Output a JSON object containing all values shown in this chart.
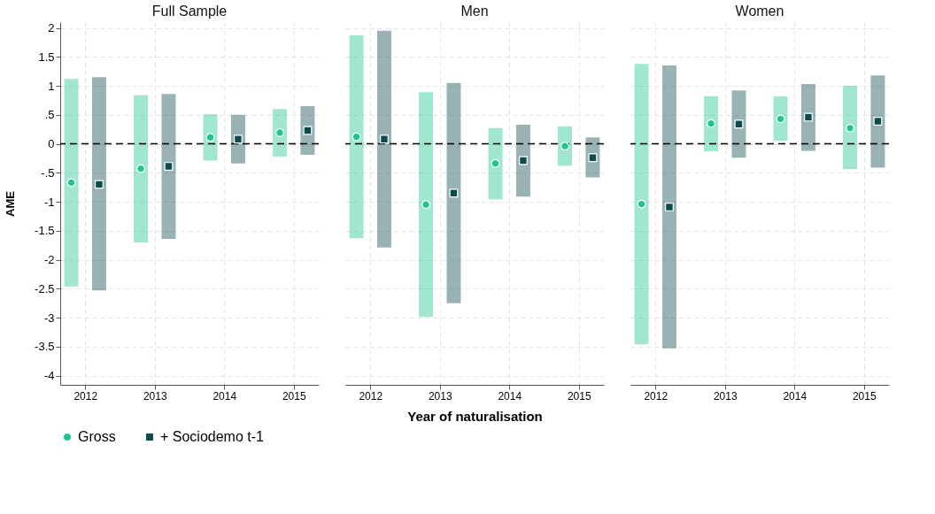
{
  "chart_data": [
    {
      "type": "scatter",
      "title": "Full Sample",
      "ylabel": "AME",
      "xlim": [
        2011.64,
        2015.36
      ],
      "ylim": [
        -4.16,
        2.1
      ],
      "xticks": [
        2012,
        2013,
        2014,
        2015
      ],
      "yticks": [
        {
          "value": -4,
          "label": "-4"
        },
        {
          "value": -3.5,
          "label": "-3.5"
        },
        {
          "value": -3,
          "label": "-3"
        },
        {
          "value": -2.5,
          "label": "-2.5"
        },
        {
          "value": -2,
          "label": "-2"
        },
        {
          "value": -1.5,
          "label": "-1.5"
        },
        {
          "value": -1,
          "label": "-1"
        },
        {
          "value": -0.5,
          "label": "-.5"
        },
        {
          "value": 0,
          "label": "0"
        },
        {
          "value": 0.5,
          "label": ".5"
        },
        {
          "value": 1,
          "label": "1"
        },
        {
          "value": 1.5,
          "label": "1.5"
        },
        {
          "value": 2,
          "label": "2"
        }
      ],
      "grid": true,
      "legend": "bottom",
      "ref_lines": [
        {
          "axis": "y",
          "value": 0,
          "color": "#000000",
          "line_style": "dashed"
        }
      ],
      "series": [
        {
          "name": "Gross",
          "color": "#1fc48f",
          "marker": "circle",
          "x": [
            2011.8,
            2012.8,
            2013.8,
            2014.8
          ],
          "values": [
            -0.67,
            -0.43,
            0.11,
            0.19
          ],
          "errors": [
            [
              -2.46,
              1.12
            ],
            [
              -1.7,
              0.84
            ],
            [
              -0.29,
              0.51
            ],
            [
              -0.22,
              0.6
            ]
          ]
        },
        {
          "name": "+ Sociodemo t-1",
          "color": "#0d4b4f",
          "marker": "square",
          "x": [
            2012.2,
            2013.2,
            2014.2,
            2015.2
          ],
          "values": [
            -0.7,
            -0.39,
            0.08,
            0.23
          ],
          "errors": [
            [
              -2.53,
              1.15
            ],
            [
              -1.64,
              0.86
            ],
            [
              -0.34,
              0.5
            ],
            [
              -0.19,
              0.65
            ]
          ]
        }
      ]
    },
    {
      "type": "scatter",
      "title": "Men",
      "xlabel": "Year of naturalisation",
      "xlim": [
        2011.64,
        2015.36
      ],
      "ylim": [
        -4.16,
        2.1
      ],
      "xticks": [
        2012,
        2013,
        2014,
        2015
      ],
      "tick_labels": "x",
      "yticks": [
        -4,
        -3.5,
        -3,
        -2.5,
        -2,
        -1.5,
        -1,
        -0.5,
        0,
        0.5,
        1,
        1.5,
        2
      ],
      "grid": true,
      "legend": "bottom",
      "ref_lines": [
        {
          "axis": "y",
          "value": 0,
          "color": "#000000",
          "line_style": "dashed"
        }
      ],
      "series": [
        {
          "name": "Gross",
          "color": "#1fc48f",
          "marker": "circle",
          "x": [
            2011.8,
            2012.8,
            2013.8,
            2014.8
          ],
          "values": [
            0.12,
            -1.05,
            -0.34,
            -0.04
          ],
          "errors": [
            [
              -1.63,
              1.87
            ],
            [
              -2.99,
              0.89
            ],
            [
              -0.96,
              0.27
            ],
            [
              -0.38,
              0.3
            ]
          ]
        },
        {
          "name": "+ Sociodemo t-1",
          "color": "#0d4b4f",
          "marker": "square",
          "x": [
            2012.2,
            2013.2,
            2014.2,
            2015.2
          ],
          "values": [
            0.08,
            -0.85,
            -0.29,
            -0.24
          ],
          "errors": [
            [
              -1.79,
              1.95
            ],
            [
              -2.75,
              1.05
            ],
            [
              -0.91,
              0.33
            ],
            [
              -0.58,
              0.11
            ]
          ]
        }
      ]
    },
    {
      "type": "scatter",
      "title": "Women",
      "xlim": [
        2011.64,
        2015.36
      ],
      "ylim": [
        -4.16,
        2.1
      ],
      "xticks": [
        2012,
        2013,
        2014,
        2015
      ],
      "tick_labels": "x",
      "yticks": [
        -4,
        -3.5,
        -3,
        -2.5,
        -2,
        -1.5,
        -1,
        -0.5,
        0,
        0.5,
        1,
        1.5,
        2
      ],
      "grid": true,
      "legend": "bottom",
      "ref_lines": [
        {
          "axis": "y",
          "value": 0,
          "color": "#000000",
          "line_style": "dashed"
        }
      ],
      "series": [
        {
          "name": "Gross",
          "color": "#1fc48f",
          "marker": "circle",
          "x": [
            2011.8,
            2012.8,
            2013.8,
            2014.8
          ],
          "values": [
            -1.04,
            0.35,
            0.43,
            0.27
          ],
          "errors": [
            [
              -3.46,
              1.38
            ],
            [
              -0.13,
              0.82
            ],
            [
              0.05,
              0.82
            ],
            [
              -0.44,
              1.0
            ]
          ]
        },
        {
          "name": "+ Sociodemo t-1",
          "color": "#0d4b4f",
          "marker": "square",
          "x": [
            2012.2,
            2013.2,
            2014.2,
            2015.2
          ],
          "values": [
            -1.09,
            0.34,
            0.46,
            0.39
          ],
          "errors": [
            [
              -3.53,
              1.35
            ],
            [
              -0.24,
              0.92
            ],
            [
              -0.12,
              1.03
            ],
            [
              -0.41,
              1.18
            ]
          ]
        }
      ]
    }
  ]
}
